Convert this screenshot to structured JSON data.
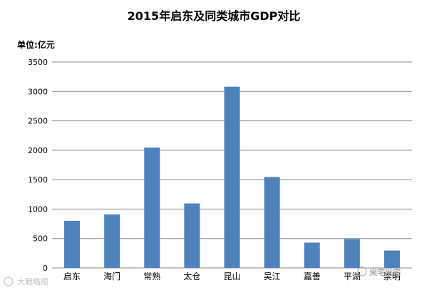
{
  "chart_data": {
    "type": "bar",
    "title": "2015年启东及同类城市GDP对比",
    "unit_label": "单位:亿元",
    "categories": [
      "启东",
      "海门",
      "常熟",
      "太仓",
      "昆山",
      "吴江",
      "嘉善",
      "平湖",
      "崇明"
    ],
    "values": [
      800,
      910,
      2045,
      1095,
      3080,
      1545,
      430,
      490,
      295
    ],
    "ylim": [
      0,
      3500
    ],
    "yticks": [
      0,
      500,
      1000,
      1500,
      2000,
      2500,
      3000,
      3500
    ],
    "grid": true,
    "bar_color": "#4F81BD"
  },
  "watermarks": {
    "left": "大戰略眼",
    "right": "米宅米宅"
  }
}
